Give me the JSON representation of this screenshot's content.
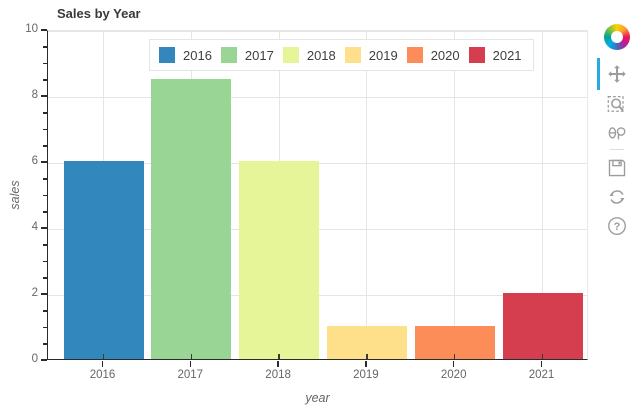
{
  "chart_data": {
    "type": "bar",
    "title": "Sales by Year",
    "categories": [
      "2016",
      "2017",
      "2018",
      "2019",
      "2020",
      "2021"
    ],
    "values": [
      6,
      8.5,
      6,
      1,
      1,
      2
    ],
    "bar_colors": [
      "#3288bd",
      "#99d594",
      "#e6f598",
      "#fee08b",
      "#fc8d59",
      "#d53e4f"
    ],
    "xlabel": "year",
    "ylabel": "sales",
    "ylim": [
      0,
      10
    ],
    "yticks": [
      0,
      2,
      4,
      6,
      8,
      10
    ],
    "minor_tick_step": 0.5,
    "grid": "both",
    "legend": {
      "location": "top",
      "entries": [
        "2016",
        "2017",
        "2018",
        "2019",
        "2020",
        "2021"
      ]
    }
  },
  "toolbar": {
    "active_tool": "pan",
    "active_color": "#26aae1",
    "icon_color": "#9d9d9d",
    "tools": [
      {
        "id": "logo",
        "name": "bokeh-logo"
      },
      {
        "id": "pan",
        "name": "pan-tool-icon",
        "active": true
      },
      {
        "id": "box_zoom",
        "name": "box-zoom-tool-icon"
      },
      {
        "id": "wheel_zoom",
        "name": "wheel-zoom-tool-icon"
      },
      {
        "id": "save",
        "name": "save-tool-icon"
      },
      {
        "id": "reset",
        "name": "reset-tool-icon"
      },
      {
        "id": "help",
        "name": "help-tool-icon"
      }
    ]
  },
  "colors": {
    "grid": "#e5e5e5",
    "axis": "#2b2b2b",
    "tick_label": "#666666",
    "title": "#3a3a3a",
    "axis_label": "#666666",
    "legend_border": "#e5e5e5",
    "legend_bg": "#ffffff"
  }
}
